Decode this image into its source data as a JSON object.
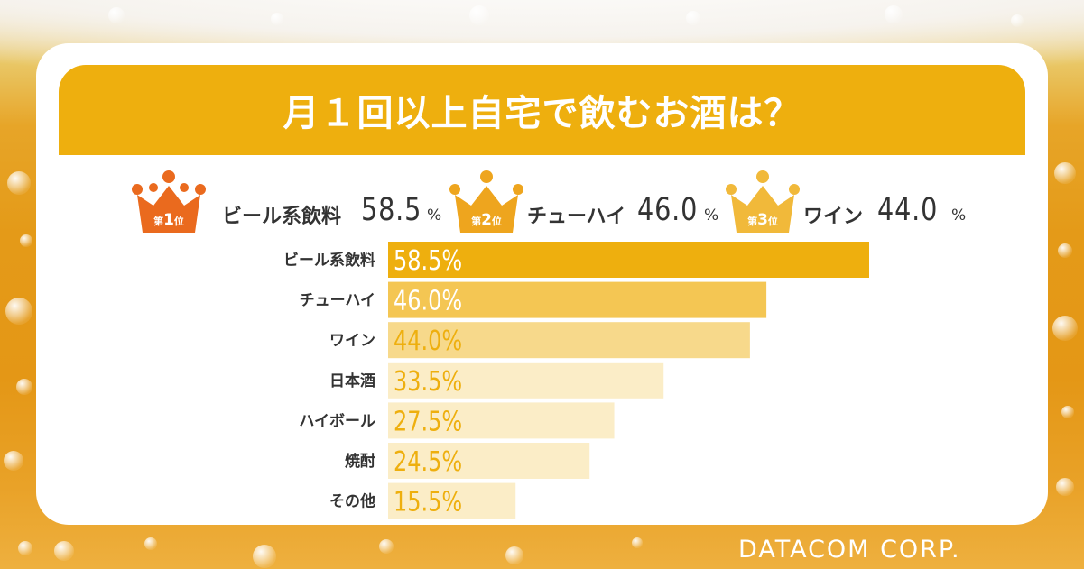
{
  "title": "月１回以上自宅で飲むお酒は？",
  "podium": [
    {
      "rank_prefix": "第",
      "rank_num": "1",
      "rank_suffix": "位",
      "name": "ビール系飲料",
      "value": "58.5",
      "unit": "%",
      "crown_color": "#ea6a1e"
    },
    {
      "rank_prefix": "第",
      "rank_num": "2",
      "rank_suffix": "位",
      "name": "チューハイ",
      "value": "46.0",
      "unit": "%",
      "crown_color": "#eea51e"
    },
    {
      "rank_prefix": "第",
      "rank_num": "3",
      "rank_suffix": "位",
      "name": "ワイン",
      "value": "44.0",
      "unit": "%",
      "crown_color": "#f1b93a"
    }
  ],
  "chart_data": {
    "type": "bar",
    "orientation": "horizontal",
    "categories": [
      "ビール系飲料",
      "チューハイ",
      "ワイン",
      "日本酒",
      "ハイボール",
      "焼酎",
      "その他"
    ],
    "values": [
      58.5,
      46.0,
      44.0,
      33.5,
      27.5,
      24.5,
      15.5
    ],
    "value_labels": [
      "58.5%",
      "46.0%",
      "44.0%",
      "33.5%",
      "27.5%",
      "24.5%",
      "15.5%"
    ],
    "bar_colors": [
      "#eeaf0e",
      "#f4c653",
      "#f7d98b",
      "#fbedc7",
      "#fbedc7",
      "#fbedc7",
      "#fbedc7"
    ],
    "label_colors": [
      "#ffffff",
      "#ffffff",
      "#eeaf0e",
      "#eeaf0e",
      "#eeaf0e",
      "#eeaf0e",
      "#eeaf0e"
    ],
    "title": "月１回以上自宅で飲むお酒は？",
    "xlabel": "",
    "ylabel": "",
    "xlim": [
      0,
      58.5
    ],
    "grid": false
  },
  "footer": {
    "logo": "DATACOM CORP."
  }
}
